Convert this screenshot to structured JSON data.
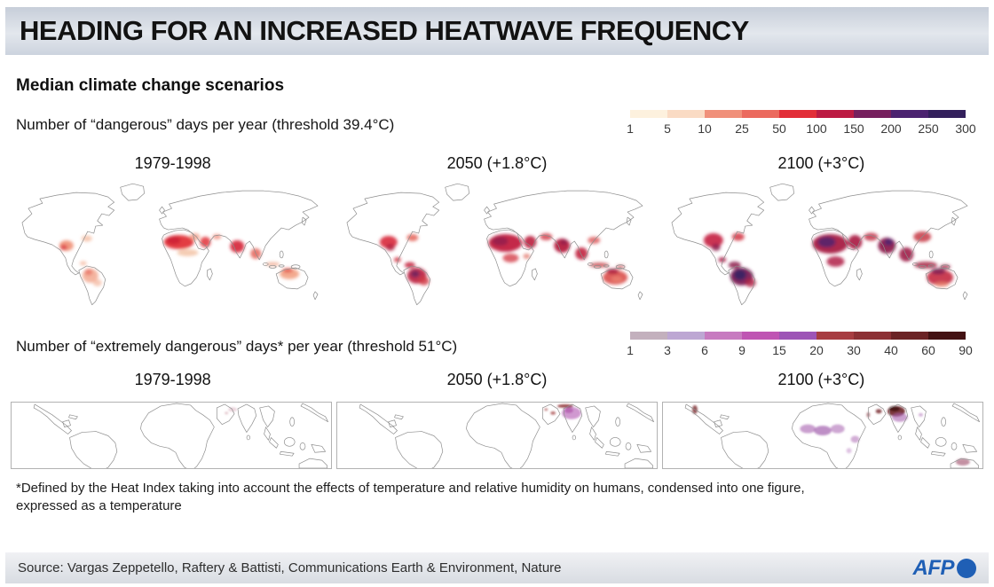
{
  "header": {
    "title": "HEADING FOR AN INCREASED HEATWAVE FREQUENCY"
  },
  "subtitle": "Median climate change scenarios",
  "chart_data": {
    "type": "heatmap",
    "title": "HEADING FOR AN INCREASED HEATWAVE FREQUENCY",
    "subtitle": "Median climate change scenarios",
    "legend_position": "top-right of each panel",
    "panels": [
      {
        "metric": "Number of  “dangerous” days per year (threshold 39.4°C)",
        "scenarios": [
          "1979-1998",
          "2050 (+1.8°C)",
          "2100 (+3°C)"
        ],
        "scale_ticks": [
          "1",
          "5",
          "10",
          "25",
          "50",
          "100",
          "150",
          "200",
          "250",
          "300"
        ],
        "scale_colors": [
          "#fdf1de",
          "#fadbc4",
          "#f0907a",
          "#eb6a5e",
          "#e22e38",
          "#bc1b43",
          "#76205e",
          "#4b2370",
          "#33205c"
        ]
      },
      {
        "metric": "Number of “extremely dangerous” days* per year (threshold 51°C)",
        "scenarios": [
          "1979-1998",
          "2050 (+1.8°C)",
          "2100 (+3°C)"
        ],
        "scale_ticks": [
          "1",
          "3",
          "6",
          "9",
          "15",
          "20",
          "30",
          "40",
          "60",
          "90"
        ],
        "scale_colors": [
          "#c3b0bd",
          "#bda7d3",
          "#c77bc0",
          "#bf55b3",
          "#9d54b6",
          "#a73d41",
          "#8c3034",
          "#6b2325",
          "#431213"
        ]
      }
    ]
  },
  "footnote": {
    "line1": "*Defined by the Heat Index taking into account the effects of temperature and relative humidity on humans, condensed into one figure,",
    "line2": "expressed as a temperature"
  },
  "footer": {
    "source": "Source: Vargas Zeppetello, Raftery & Battisti, Communications Earth & Environment, Nature",
    "logo_text": "AFP",
    "logo_color": "#1f5fb5"
  }
}
